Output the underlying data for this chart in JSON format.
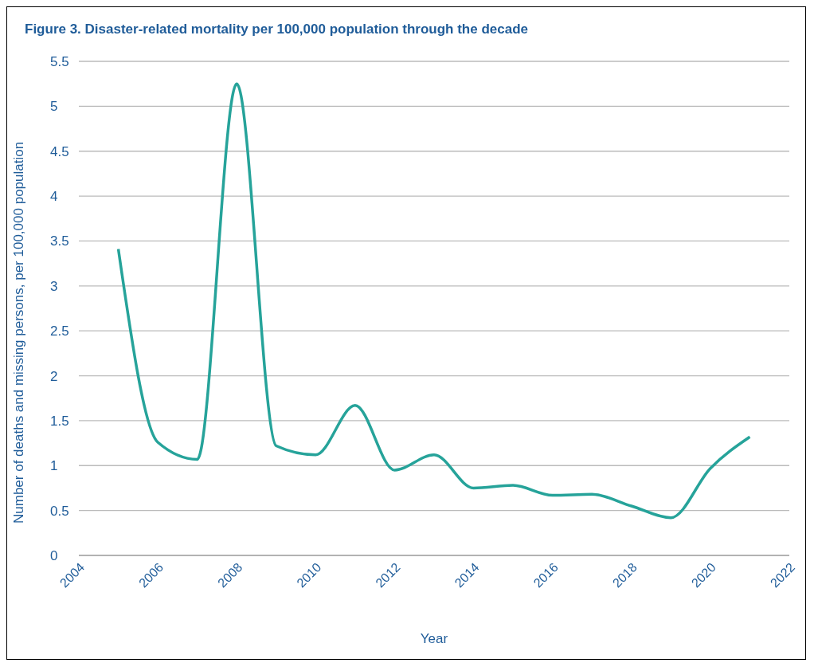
{
  "chart_data": {
    "type": "line",
    "title": "Figure 3. Disaster-related mortality per 100,000 population through the decade",
    "xlabel": "Year",
    "ylabel": "Number of deaths and missing persons, per 100,000 population",
    "x": [
      2005,
      2006,
      2007,
      2008,
      2009,
      2010,
      2011,
      2012,
      2013,
      2014,
      2015,
      2016,
      2017,
      2018,
      2019,
      2020,
      2021
    ],
    "series": [
      {
        "color": "#26a39a",
        "values": [
          3.41,
          1.26,
          1.07,
          5.25,
          1.22,
          1.12,
          1.67,
          0.95,
          1.12,
          0.75,
          0.78,
          0.67,
          0.68,
          0.55,
          0.42,
          0.97,
          1.32
        ]
      }
    ],
    "xlim": [
      2004,
      2022
    ],
    "xticks": [
      2004,
      2006,
      2008,
      2010,
      2012,
      2014,
      2016,
      2018,
      2020,
      2022
    ],
    "ylim": [
      0,
      5.5
    ],
    "yticks": [
      0,
      0.5,
      1,
      1.5,
      2,
      2.5,
      3,
      3.5,
      4,
      4.5,
      5,
      5.5
    ],
    "grid": "y",
    "marker": "none"
  }
}
